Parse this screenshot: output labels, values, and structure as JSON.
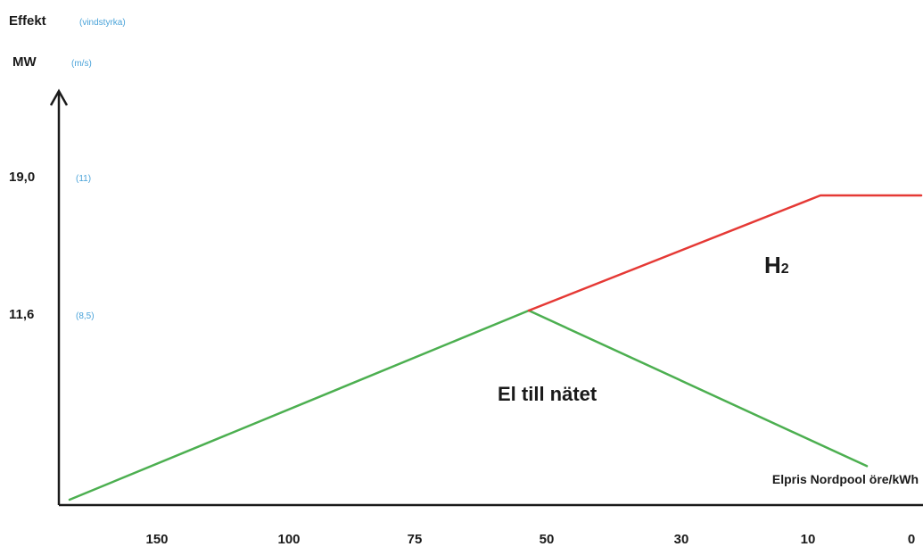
{
  "chart_data": {
    "type": "line",
    "ylabel": "Effekt",
    "ylabel_secondary": "(vindstyrka)",
    "yunit": "MW",
    "yunit_secondary": "(m/s)",
    "xlabel": "Elpris Nordpool öre/kWh",
    "x_ticks": [
      "150",
      "100",
      "75",
      "50",
      "30",
      "10",
      "0"
    ],
    "y_ticks": [
      {
        "value": 19.0,
        "label": "19,0",
        "secondary": "(11)"
      },
      {
        "value": 11.6,
        "label": "11,6",
        "secondary": "(8,5)"
      }
    ],
    "ylim": [
      0,
      26
    ],
    "series": [
      {
        "key": "green_rise",
        "color": "#4caf50",
        "points": [
          {
            "x": "150",
            "y": 0
          },
          {
            "x": "50",
            "y": 11.6
          }
        ]
      },
      {
        "key": "green_fall",
        "color": "#4caf50",
        "points": [
          {
            "x": "50",
            "y": 11.6
          },
          {
            "x": "0",
            "y": 1.6
          }
        ]
      },
      {
        "key": "red_h2",
        "color": "#e53935",
        "points": [
          {
            "x": "50",
            "y": 11.6
          },
          {
            "x": "10",
            "y": 19.0
          },
          {
            "x": "0",
            "y": 19.0
          }
        ]
      }
    ],
    "annotations": {
      "h2": {
        "main": "H",
        "sub": "2"
      },
      "grid": "El till nätet"
    },
    "grid": false
  }
}
